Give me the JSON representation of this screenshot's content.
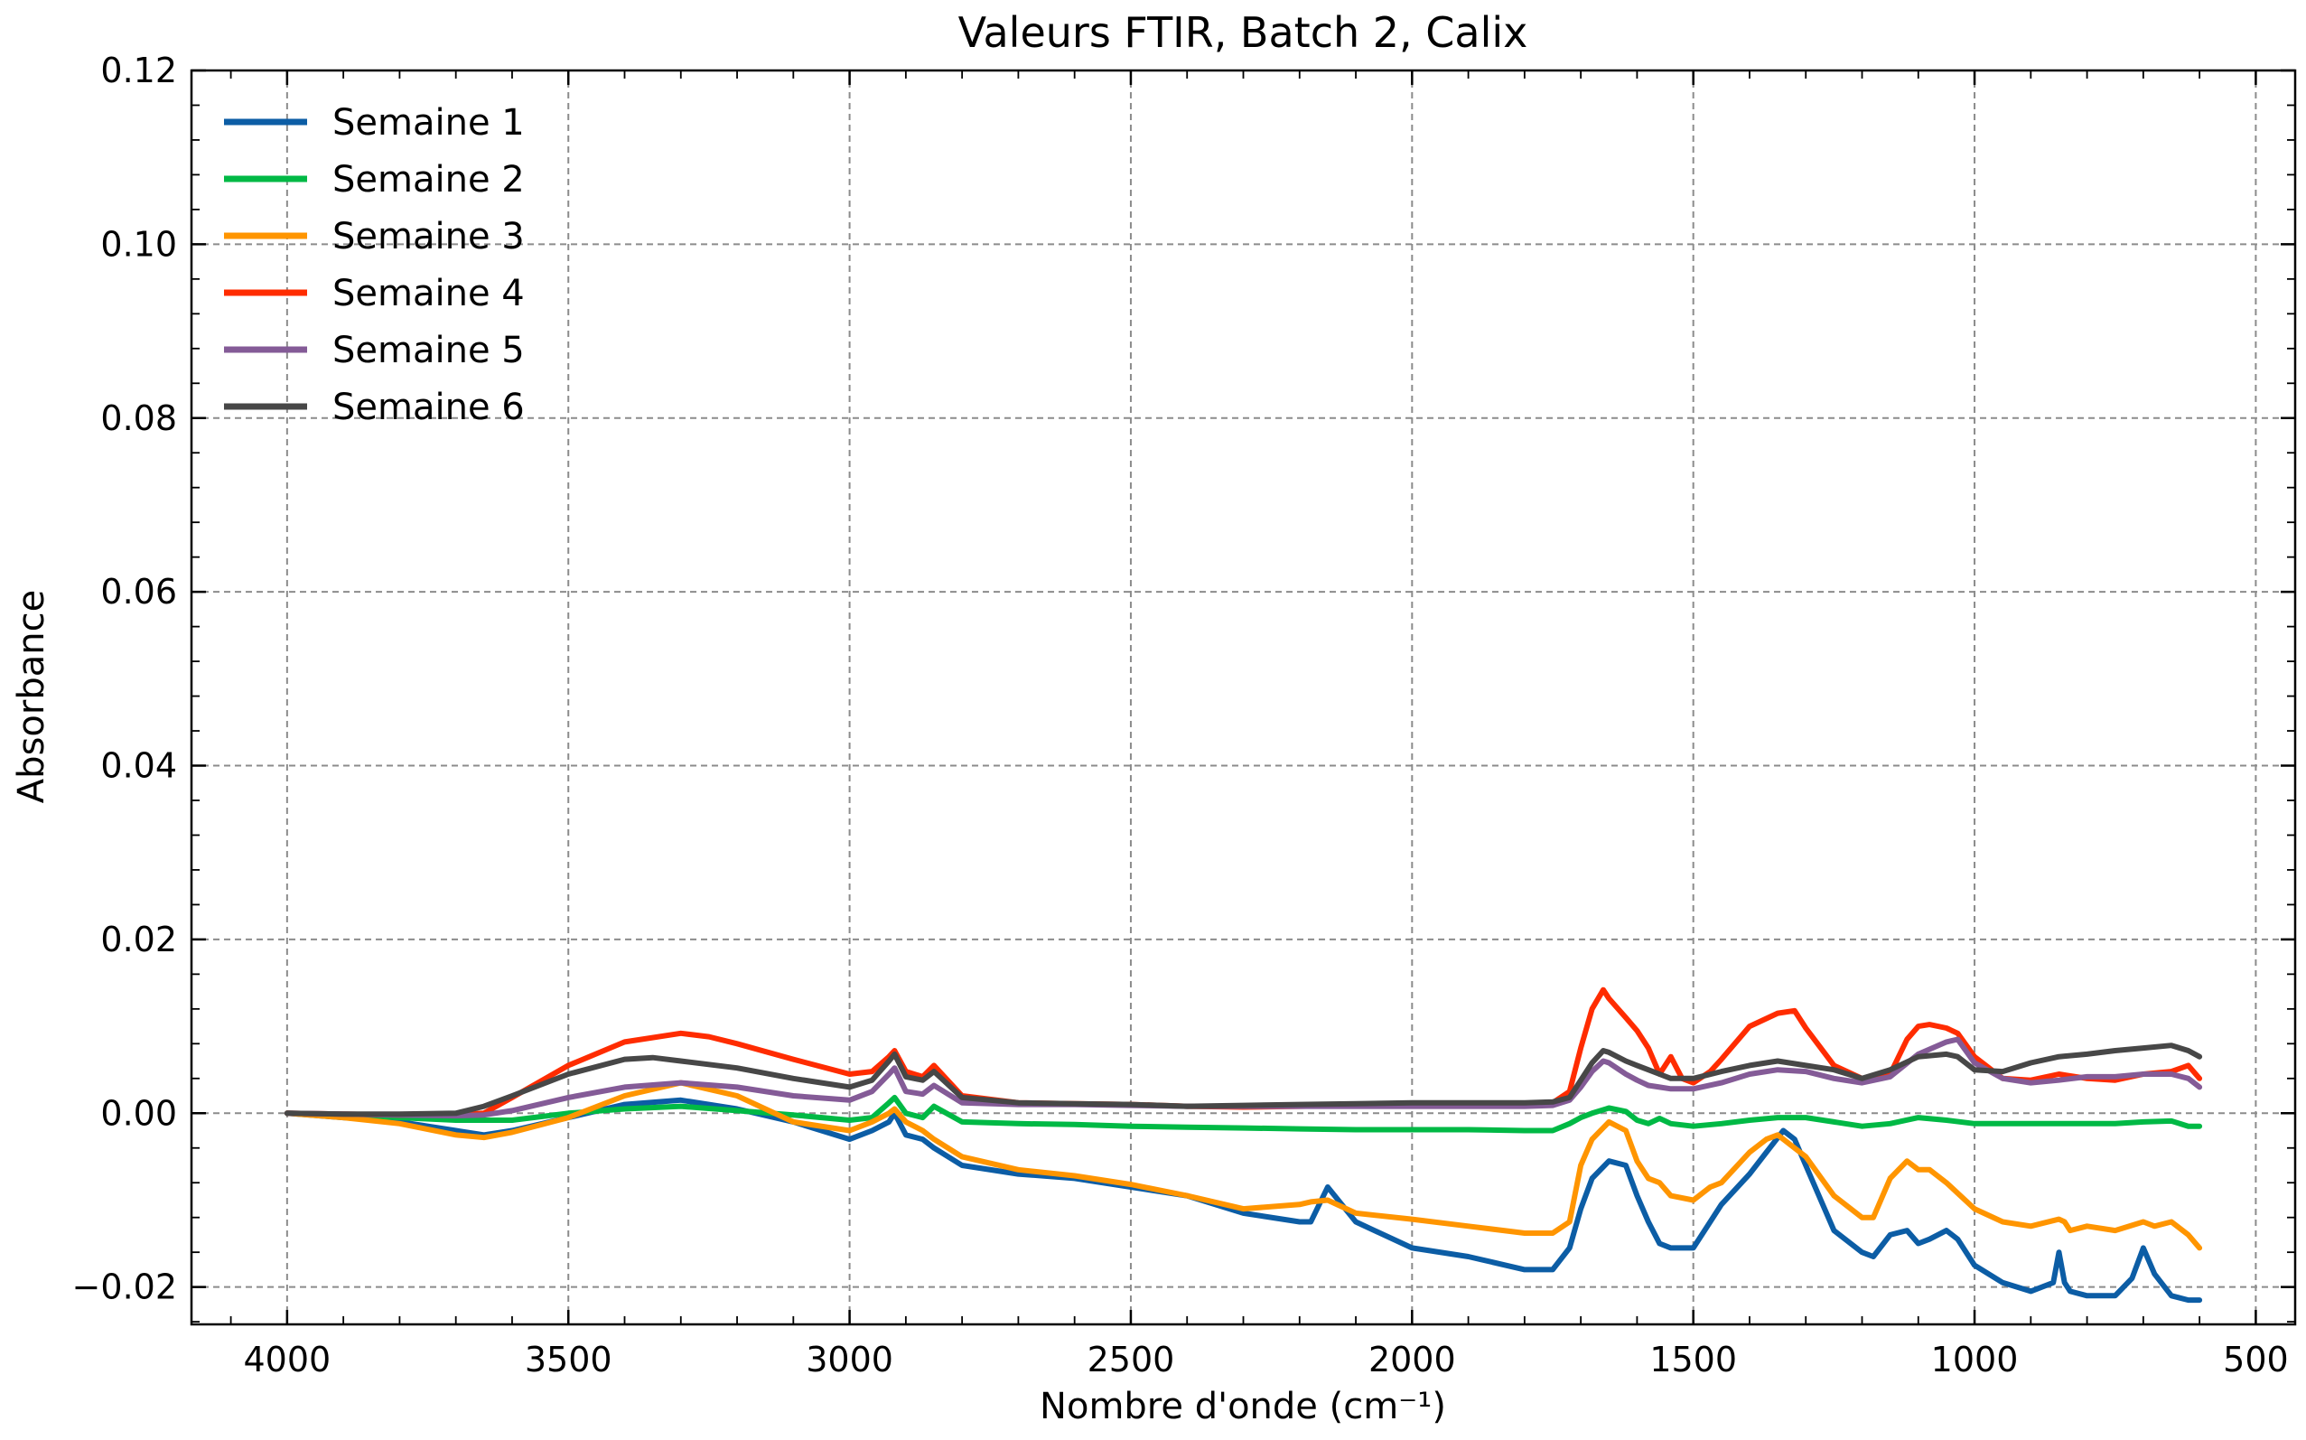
{
  "chart_data": {
    "type": "line",
    "title": "Valeurs FTIR, Batch 2, Calix",
    "xlabel": "Nombre d'onde (cm⁻¹)",
    "ylabel": "Absorbance",
    "xlim": [
      4170,
      430
    ],
    "ylim": [
      -0.0243,
      0.12
    ],
    "x_reversed": true,
    "grid": true,
    "legend": "top-left",
    "xticks": [
      4000,
      3500,
      3000,
      2500,
      2000,
      1500,
      1000,
      500
    ],
    "xtick_labels": [
      "4000",
      "3500",
      "3000",
      "2500",
      "2000",
      "1500",
      "1000",
      "500"
    ],
    "yticks": [
      -0.02,
      0.0,
      0.02,
      0.04,
      0.06,
      0.08,
      0.1,
      0.12
    ],
    "ytick_labels": [
      "−0.02",
      "0.00",
      "0.02",
      "0.04",
      "0.06",
      "0.08",
      "0.10",
      "0.12"
    ],
    "series": [
      {
        "name": "Semaine 1",
        "color": "#0c5da5",
        "x": [
          4000,
          3900,
          3800,
          3700,
          3650,
          3600,
          3500,
          3400,
          3300,
          3200,
          3100,
          3000,
          2960,
          2930,
          2920,
          2900,
          2870,
          2850,
          2800,
          2700,
          2600,
          2500,
          2400,
          2300,
          2200,
          2180,
          2150,
          2100,
          2000,
          1900,
          1800,
          1750,
          1720,
          1700,
          1680,
          1650,
          1620,
          1600,
          1580,
          1560,
          1540,
          1500,
          1470,
          1450,
          1400,
          1370,
          1340,
          1320,
          1300,
          1250,
          1200,
          1180,
          1150,
          1120,
          1100,
          1080,
          1050,
          1030,
          1000,
          950,
          900,
          860,
          850,
          840,
          830,
          800,
          750,
          720,
          700,
          680,
          650,
          620,
          600
        ],
        "y": [
          0.0,
          -0.0005,
          -0.001,
          -0.002,
          -0.0025,
          -0.002,
          -0.0005,
          0.001,
          0.0015,
          0.0005,
          -0.001,
          -0.003,
          -0.002,
          -0.001,
          0.0,
          -0.0025,
          -0.003,
          -0.004,
          -0.006,
          -0.007,
          -0.0075,
          -0.0085,
          -0.0095,
          -0.0115,
          -0.0125,
          -0.0125,
          -0.0085,
          -0.0125,
          -0.0155,
          -0.0165,
          -0.018,
          -0.018,
          -0.0155,
          -0.011,
          -0.0075,
          -0.0055,
          -0.006,
          -0.0095,
          -0.0125,
          -0.015,
          -0.0155,
          -0.0155,
          -0.0125,
          -0.0105,
          -0.007,
          -0.0045,
          -0.002,
          -0.003,
          -0.006,
          -0.0135,
          -0.016,
          -0.0165,
          -0.014,
          -0.0135,
          -0.015,
          -0.0145,
          -0.0135,
          -0.0145,
          -0.0175,
          -0.0195,
          -0.0205,
          -0.0195,
          -0.016,
          -0.0195,
          -0.0205,
          -0.021,
          -0.021,
          -0.019,
          -0.0155,
          -0.0185,
          -0.021,
          -0.0215,
          -0.0215
        ]
      },
      {
        "name": "Semaine 2",
        "color": "#00b945",
        "x": [
          4000,
          3900,
          3800,
          3700,
          3600,
          3500,
          3400,
          3300,
          3200,
          3100,
          3000,
          2960,
          2930,
          2920,
          2900,
          2870,
          2850,
          2800,
          2700,
          2600,
          2500,
          2400,
          2300,
          2200,
          2100,
          2000,
          1900,
          1800,
          1750,
          1720,
          1700,
          1680,
          1650,
          1620,
          1600,
          1580,
          1560,
          1540,
          1500,
          1450,
          1400,
          1350,
          1300,
          1250,
          1200,
          1150,
          1100,
          1050,
          1000,
          950,
          900,
          850,
          800,
          750,
          700,
          650,
          620,
          600
        ],
        "y": [
          0.0,
          -0.0002,
          -0.0005,
          -0.0008,
          -0.0008,
          0.0,
          0.0005,
          0.0008,
          0.0003,
          -0.0002,
          -0.0008,
          -0.0005,
          0.0012,
          0.0018,
          0.0,
          -0.0005,
          0.0008,
          -0.001,
          -0.0012,
          -0.0013,
          -0.0015,
          -0.0016,
          -0.0017,
          -0.0018,
          -0.0019,
          -0.0019,
          -0.0019,
          -0.002,
          -0.002,
          -0.0012,
          -0.0005,
          0.0,
          0.0006,
          0.0002,
          -0.0008,
          -0.0012,
          -0.0006,
          -0.0012,
          -0.0015,
          -0.0012,
          -0.0008,
          -0.0005,
          -0.0005,
          -0.001,
          -0.0015,
          -0.0012,
          -0.0005,
          -0.0008,
          -0.0012,
          -0.0012,
          -0.0012,
          -0.0012,
          -0.0012,
          -0.0012,
          -0.001,
          -0.0009,
          -0.0015,
          -0.0015
        ]
      },
      {
        "name": "Semaine 3",
        "color": "#ff9500",
        "x": [
          4000,
          3900,
          3800,
          3700,
          3650,
          3600,
          3500,
          3400,
          3300,
          3200,
          3100,
          3000,
          2960,
          2930,
          2920,
          2900,
          2870,
          2850,
          2800,
          2700,
          2600,
          2500,
          2400,
          2300,
          2200,
          2180,
          2150,
          2100,
          2000,
          1900,
          1800,
          1750,
          1720,
          1700,
          1680,
          1650,
          1620,
          1600,
          1580,
          1560,
          1540,
          1500,
          1470,
          1450,
          1400,
          1370,
          1350,
          1300,
          1250,
          1200,
          1180,
          1150,
          1120,
          1100,
          1080,
          1050,
          1000,
          950,
          900,
          850,
          840,
          830,
          800,
          750,
          700,
          680,
          650,
          620,
          600
        ],
        "y": [
          0.0,
          -0.0005,
          -0.0012,
          -0.0025,
          -0.0028,
          -0.0022,
          -0.0005,
          0.002,
          0.0035,
          0.002,
          -0.001,
          -0.002,
          -0.001,
          0.0,
          0.0005,
          -0.001,
          -0.002,
          -0.003,
          -0.005,
          -0.0065,
          -0.0072,
          -0.0082,
          -0.0095,
          -0.011,
          -0.0105,
          -0.0102,
          -0.01,
          -0.0115,
          -0.0122,
          -0.013,
          -0.0138,
          -0.0138,
          -0.0125,
          -0.006,
          -0.003,
          -0.001,
          -0.002,
          -0.0055,
          -0.0075,
          -0.008,
          -0.0095,
          -0.01,
          -0.0085,
          -0.008,
          -0.0045,
          -0.003,
          -0.0025,
          -0.005,
          -0.0095,
          -0.012,
          -0.012,
          -0.0075,
          -0.0055,
          -0.0065,
          -0.0065,
          -0.008,
          -0.011,
          -0.0125,
          -0.013,
          -0.0122,
          -0.0125,
          -0.0135,
          -0.013,
          -0.0135,
          -0.0125,
          -0.013,
          -0.0125,
          -0.014,
          -0.0155
        ]
      },
      {
        "name": "Semaine 4",
        "color": "#ff2c00",
        "x": [
          4000,
          3900,
          3800,
          3700,
          3650,
          3600,
          3500,
          3400,
          3300,
          3250,
          3200,
          3100,
          3000,
          2960,
          2930,
          2920,
          2900,
          2870,
          2850,
          2800,
          2700,
          2600,
          2500,
          2400,
          2300,
          2200,
          2100,
          2000,
          1900,
          1800,
          1750,
          1720,
          1700,
          1680,
          1660,
          1650,
          1620,
          1600,
          1580,
          1560,
          1540,
          1520,
          1500,
          1470,
          1450,
          1400,
          1350,
          1320,
          1300,
          1250,
          1200,
          1150,
          1120,
          1100,
          1080,
          1050,
          1030,
          1000,
          950,
          900,
          850,
          800,
          750,
          700,
          650,
          620,
          600
        ],
        "y": [
          0.0,
          -0.0001,
          -0.0002,
          -0.0002,
          0.0,
          0.0018,
          0.0055,
          0.0082,
          0.0092,
          0.0088,
          0.008,
          0.0062,
          0.0045,
          0.0048,
          0.0065,
          0.0072,
          0.0048,
          0.0042,
          0.0055,
          0.002,
          0.0012,
          0.0011,
          0.001,
          0.0008,
          0.0007,
          0.0008,
          0.0009,
          0.001,
          0.001,
          0.001,
          0.0012,
          0.0025,
          0.0075,
          0.012,
          0.0142,
          0.0132,
          0.011,
          0.0095,
          0.0075,
          0.0045,
          0.0065,
          0.004,
          0.0035,
          0.0048,
          0.0062,
          0.01,
          0.0115,
          0.0118,
          0.0098,
          0.0055,
          0.004,
          0.0045,
          0.0085,
          0.01,
          0.0102,
          0.0098,
          0.0092,
          0.0065,
          0.004,
          0.0038,
          0.0045,
          0.004,
          0.0038,
          0.0045,
          0.0048,
          0.0055,
          0.004
        ]
      },
      {
        "name": "Semaine 5",
        "color": "#845b97",
        "x": [
          4000,
          3900,
          3800,
          3700,
          3650,
          3600,
          3500,
          3400,
          3300,
          3200,
          3100,
          3000,
          2960,
          2930,
          2920,
          2900,
          2870,
          2850,
          2800,
          2700,
          2600,
          2500,
          2400,
          2300,
          2200,
          2100,
          2000,
          1900,
          1800,
          1750,
          1720,
          1700,
          1680,
          1660,
          1650,
          1620,
          1600,
          1580,
          1560,
          1540,
          1500,
          1450,
          1400,
          1350,
          1300,
          1250,
          1200,
          1150,
          1100,
          1050,
          1030,
          1000,
          950,
          900,
          850,
          800,
          750,
          700,
          650,
          620,
          600
        ],
        "y": [
          0.0,
          -0.0001,
          -0.0002,
          -0.0003,
          -0.0002,
          0.0003,
          0.0018,
          0.003,
          0.0035,
          0.003,
          0.002,
          0.0015,
          0.0025,
          0.0045,
          0.0052,
          0.0025,
          0.0022,
          0.0032,
          0.0012,
          0.001,
          0.001,
          0.0009,
          0.0008,
          0.0008,
          0.0008,
          0.0008,
          0.0008,
          0.0008,
          0.0008,
          0.0009,
          0.0015,
          0.003,
          0.0048,
          0.006,
          0.0058,
          0.0045,
          0.0038,
          0.0032,
          0.003,
          0.0028,
          0.0028,
          0.0035,
          0.0045,
          0.005,
          0.0048,
          0.004,
          0.0035,
          0.0042,
          0.0068,
          0.0082,
          0.0085,
          0.0058,
          0.004,
          0.0035,
          0.0038,
          0.0042,
          0.0042,
          0.0045,
          0.0045,
          0.004,
          0.003
        ]
      },
      {
        "name": "Semaine 6",
        "color": "#474747",
        "x": [
          4000,
          3900,
          3800,
          3700,
          3650,
          3600,
          3500,
          3400,
          3350,
          3300,
          3200,
          3100,
          3000,
          2960,
          2930,
          2920,
          2900,
          2870,
          2850,
          2800,
          2700,
          2600,
          2500,
          2400,
          2300,
          2200,
          2100,
          2000,
          1900,
          1800,
          1750,
          1720,
          1700,
          1680,
          1660,
          1650,
          1620,
          1600,
          1580,
          1560,
          1540,
          1500,
          1450,
          1400,
          1350,
          1300,
          1250,
          1200,
          1150,
          1100,
          1050,
          1030,
          1000,
          950,
          900,
          850,
          800,
          750,
          700,
          650,
          620,
          600
        ],
        "y": [
          0.0,
          -0.0001,
          -0.0001,
          0.0,
          0.0008,
          0.002,
          0.0045,
          0.0062,
          0.0064,
          0.006,
          0.0052,
          0.004,
          0.003,
          0.0038,
          0.006,
          0.0068,
          0.0042,
          0.0038,
          0.0048,
          0.0018,
          0.0012,
          0.0011,
          0.001,
          0.0008,
          0.0009,
          0.001,
          0.0011,
          0.0012,
          0.0012,
          0.0012,
          0.0013,
          0.0018,
          0.0038,
          0.0058,
          0.0072,
          0.007,
          0.006,
          0.0055,
          0.005,
          0.0045,
          0.004,
          0.004,
          0.0048,
          0.0055,
          0.006,
          0.0055,
          0.005,
          0.004,
          0.005,
          0.0065,
          0.0068,
          0.0065,
          0.005,
          0.0048,
          0.0058,
          0.0065,
          0.0068,
          0.0072,
          0.0075,
          0.0078,
          0.0072,
          0.0065
        ]
      }
    ]
  }
}
